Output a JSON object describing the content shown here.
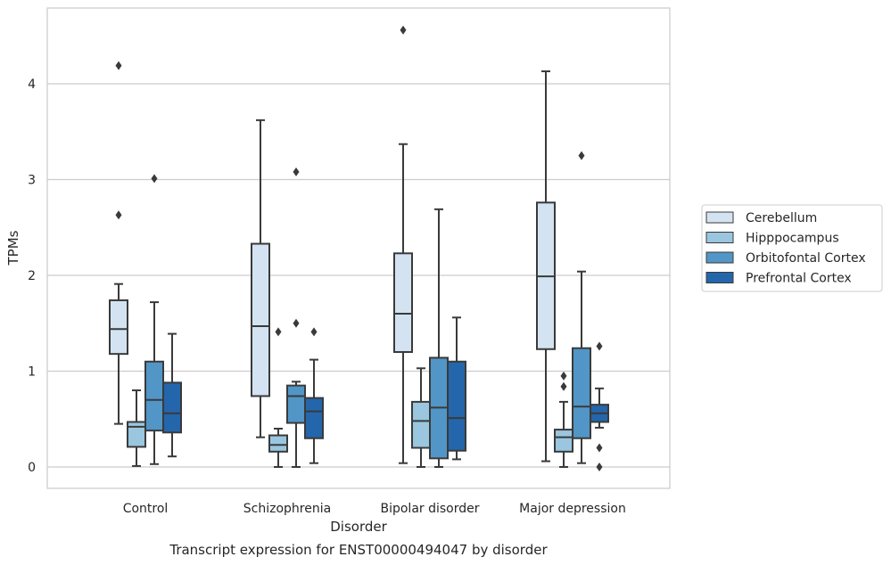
{
  "chart_data": {
    "type": "box",
    "title": "",
    "caption": "Transcript expression for ENST00000494047 by disorder",
    "xlabel": "Disorder",
    "ylabel": "TPMs",
    "ylim": [
      -0.22,
      4.8
    ],
    "yticks": [
      0,
      1,
      2,
      3,
      4
    ],
    "grid": "horizontal",
    "legend_position": "right",
    "categories": [
      "Control",
      "Schizophrenia",
      "Bipolar disorder",
      "Major depression"
    ],
    "series": [
      {
        "name": "Cerebellum",
        "color": "#d3e3f2",
        "boxes": [
          {
            "whisker_low": 0.45,
            "q1": 1.18,
            "median": 1.44,
            "q3": 1.74,
            "whisker_high": 1.91,
            "outliers": [
              2.63,
              4.19
            ]
          },
          {
            "whisker_low": 0.31,
            "q1": 0.74,
            "median": 1.47,
            "q3": 2.33,
            "whisker_high": 3.62,
            "outliers": []
          },
          {
            "whisker_low": 0.04,
            "q1": 1.2,
            "median": 1.6,
            "q3": 2.23,
            "whisker_high": 3.37,
            "outliers": [
              4.56
            ]
          },
          {
            "whisker_low": 0.06,
            "q1": 1.23,
            "median": 1.99,
            "q3": 2.76,
            "whisker_high": 4.13,
            "outliers": []
          }
        ]
      },
      {
        "name": "Hipppocampus",
        "color": "#9ac6df",
        "boxes": [
          {
            "whisker_low": 0.01,
            "q1": 0.21,
            "median": 0.42,
            "q3": 0.47,
            "whisker_high": 0.8,
            "outliers": []
          },
          {
            "whisker_low": 0.0,
            "q1": 0.16,
            "median": 0.23,
            "q3": 0.33,
            "whisker_high": 0.4,
            "outliers": [
              1.41
            ]
          },
          {
            "whisker_low": 0.0,
            "q1": 0.2,
            "median": 0.48,
            "q3": 0.68,
            "whisker_high": 1.03,
            "outliers": []
          },
          {
            "whisker_low": 0.0,
            "q1": 0.16,
            "median": 0.31,
            "q3": 0.39,
            "whisker_high": 0.68,
            "outliers": [
              0.84,
              0.95
            ]
          }
        ]
      },
      {
        "name": "Orbitofontal Cortex",
        "color": "#5196c7",
        "boxes": [
          {
            "whisker_low": 0.03,
            "q1": 0.38,
            "median": 0.7,
            "q3": 1.1,
            "whisker_high": 1.72,
            "outliers": [
              3.01
            ]
          },
          {
            "whisker_low": 0.0,
            "q1": 0.46,
            "median": 0.74,
            "q3": 0.85,
            "whisker_high": 0.89,
            "outliers": [
              1.5,
              3.08
            ]
          },
          {
            "whisker_low": 0.0,
            "q1": 0.09,
            "median": 0.62,
            "q3": 1.14,
            "whisker_high": 2.69,
            "outliers": []
          },
          {
            "whisker_low": 0.04,
            "q1": 0.3,
            "median": 0.63,
            "q3": 1.24,
            "whisker_high": 2.04,
            "outliers": [
              3.25
            ]
          }
        ]
      },
      {
        "name": "Prefrontal Cortex",
        "color": "#2466ab",
        "boxes": [
          {
            "whisker_low": 0.11,
            "q1": 0.36,
            "median": 0.56,
            "q3": 0.88,
            "whisker_high": 1.39,
            "outliers": []
          },
          {
            "whisker_low": 0.04,
            "q1": 0.3,
            "median": 0.58,
            "q3": 0.72,
            "whisker_high": 1.12,
            "outliers": [
              1.41
            ]
          },
          {
            "whisker_low": 0.08,
            "q1": 0.17,
            "median": 0.51,
            "q3": 1.1,
            "whisker_high": 1.56,
            "outliers": []
          },
          {
            "whisker_low": 0.41,
            "q1": 0.47,
            "median": 0.56,
            "q3": 0.65,
            "whisker_high": 0.82,
            "outliers": [
              0.0,
              0.2,
              1.26
            ]
          }
        ]
      }
    ]
  }
}
